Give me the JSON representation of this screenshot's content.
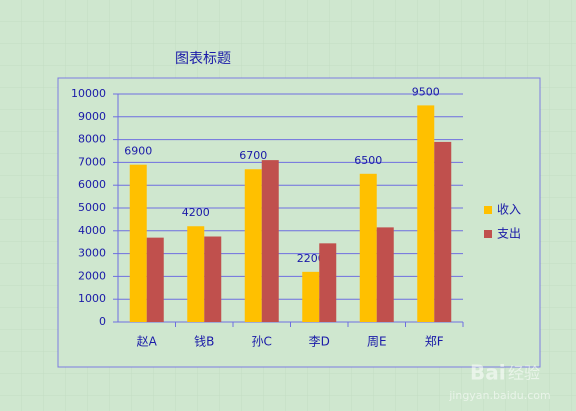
{
  "chart_data": {
    "type": "bar",
    "title": "图表标题",
    "categories": [
      "赵A",
      "钱B",
      "孙C",
      "李D",
      "周E",
      "郑F"
    ],
    "series": [
      {
        "name": "收入",
        "color": "#ffc000",
        "values": [
          6900,
          4200,
          6700,
          2200,
          6500,
          9500
        ],
        "labels": true
      },
      {
        "name": "支出",
        "color": "#c0504d",
        "values": [
          3700,
          3750,
          7100,
          3450,
          4150,
          7900
        ],
        "labels": false
      }
    ],
    "ylim": [
      0,
      10000
    ],
    "yticks": [
      0,
      1000,
      2000,
      3000,
      4000,
      5000,
      6000,
      7000,
      8000,
      9000,
      10000
    ],
    "grid": true,
    "legend": "right"
  },
  "watermark": {
    "brand": "Bai",
    "label": "经验",
    "url": "jingyan.baidu.com"
  }
}
